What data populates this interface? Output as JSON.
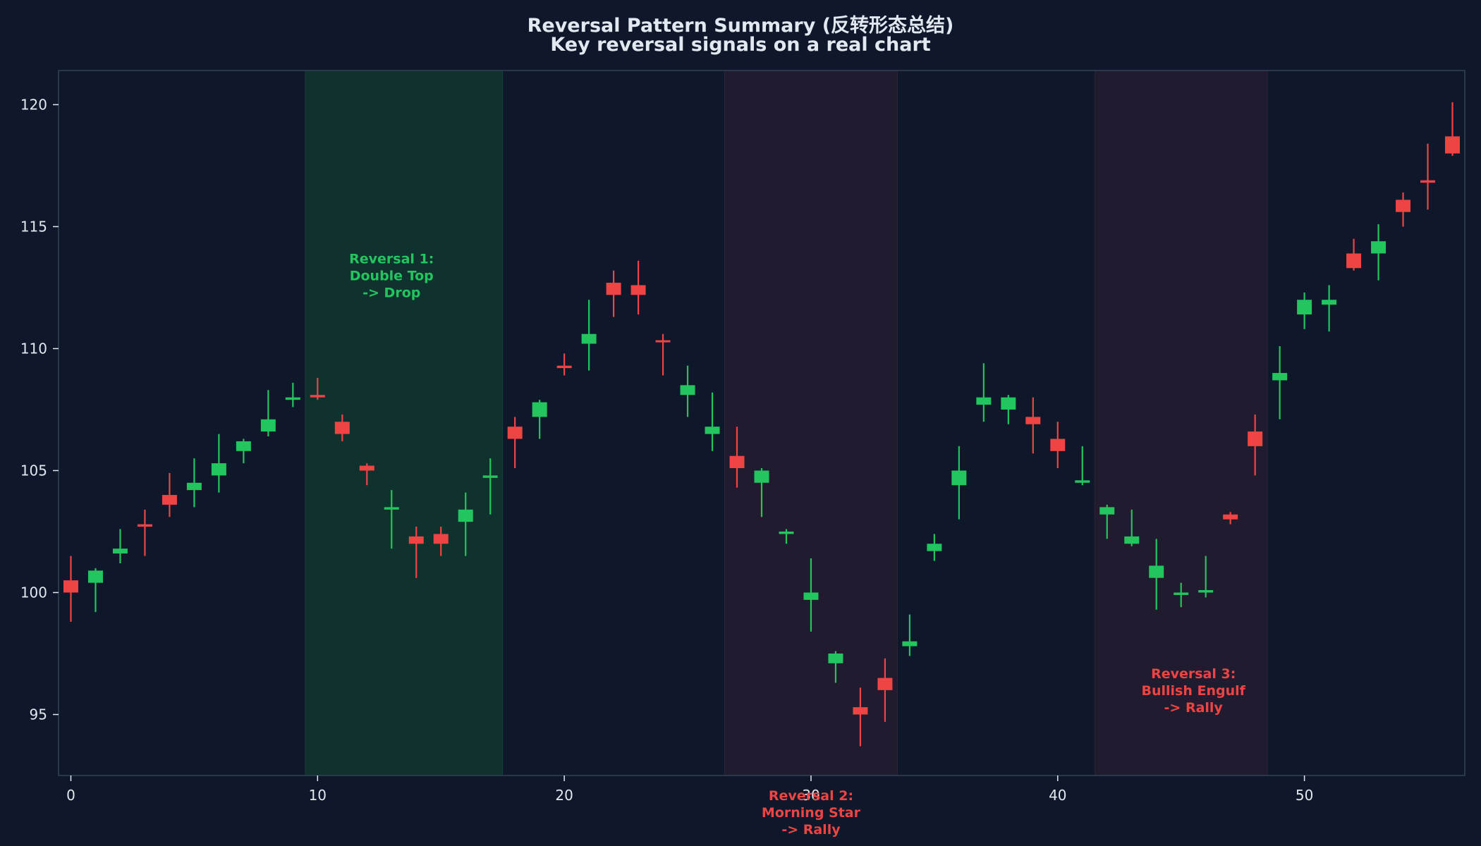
{
  "chart_data": {
    "type": "candlestick",
    "title": "Reversal Pattern Summary (反转形态总结)",
    "subtitle": "Key reversal signals on a real chart",
    "xlabel": "",
    "ylabel": "",
    "xlim": [
      -0.5,
      56.5
    ],
    "ylim": [
      92.5,
      121.4
    ],
    "xticks": [
      0,
      10,
      20,
      30,
      40,
      50
    ],
    "yticks": [
      95,
      100,
      105,
      110,
      115,
      120
    ],
    "colors": {
      "background": "#0f172a",
      "up": "#22c55e",
      "down": "#ef4444",
      "text": "#e2e8f0",
      "axis": "#334155",
      "zone_green": "#10322f",
      "zone_red": "#201b2e"
    },
    "zones": [
      {
        "x0": 9.5,
        "x1": 17.5,
        "type": "green"
      },
      {
        "x0": 26.5,
        "x1": 33.5,
        "type": "red"
      },
      {
        "x0": 41.5,
        "x1": 48.5,
        "type": "red"
      }
    ],
    "annotations": [
      {
        "x": 13.0,
        "y": 113.0,
        "color": "#22c55e",
        "lines": [
          "Reversal 1:",
          "Double Top",
          "-> Drop"
        ]
      },
      {
        "x": 30.0,
        "y": 91.0,
        "color": "#ef4444",
        "lines": [
          "Reversal 2:",
          "Morning Star",
          "-> Rally"
        ]
      },
      {
        "x": 45.5,
        "y": 96.0,
        "color": "#ef4444",
        "lines": [
          "Reversal 3:",
          "Bullish Engulf",
          "-> Rally"
        ]
      }
    ],
    "candles": [
      {
        "x": 0,
        "o": 100.5,
        "h": 101.5,
        "l": 98.8,
        "c": 100.0,
        "dir": "down"
      },
      {
        "x": 1,
        "o": 100.4,
        "h": 101.0,
        "l": 99.2,
        "c": 100.9,
        "dir": "up"
      },
      {
        "x": 2,
        "o": 101.6,
        "h": 102.6,
        "l": 101.2,
        "c": 101.8,
        "dir": "up"
      },
      {
        "x": 3,
        "o": 102.8,
        "h": 103.4,
        "l": 101.5,
        "c": 102.7,
        "dir": "down"
      },
      {
        "x": 4,
        "o": 104.0,
        "h": 104.9,
        "l": 103.1,
        "c": 103.6,
        "dir": "down"
      },
      {
        "x": 5,
        "o": 104.2,
        "h": 105.5,
        "l": 103.5,
        "c": 104.5,
        "dir": "up"
      },
      {
        "x": 6,
        "o": 104.8,
        "h": 106.5,
        "l": 104.1,
        "c": 105.3,
        "dir": "up"
      },
      {
        "x": 7,
        "o": 105.8,
        "h": 106.3,
        "l": 105.3,
        "c": 106.2,
        "dir": "up"
      },
      {
        "x": 8,
        "o": 106.6,
        "h": 108.3,
        "l": 106.4,
        "c": 107.1,
        "dir": "up"
      },
      {
        "x": 9,
        "o": 107.9,
        "h": 108.6,
        "l": 107.6,
        "c": 108.0,
        "dir": "up"
      },
      {
        "x": 10,
        "o": 108.1,
        "h": 108.8,
        "l": 107.9,
        "c": 108.0,
        "dir": "down"
      },
      {
        "x": 11,
        "o": 107.0,
        "h": 107.3,
        "l": 106.2,
        "c": 106.5,
        "dir": "down"
      },
      {
        "x": 12,
        "o": 105.2,
        "h": 105.3,
        "l": 104.4,
        "c": 105.0,
        "dir": "down"
      },
      {
        "x": 13,
        "o": 103.4,
        "h": 104.2,
        "l": 101.8,
        "c": 103.5,
        "dir": "up"
      },
      {
        "x": 14,
        "o": 102.3,
        "h": 102.7,
        "l": 100.6,
        "c": 102.0,
        "dir": "down"
      },
      {
        "x": 15,
        "o": 102.4,
        "h": 102.7,
        "l": 101.5,
        "c": 102.0,
        "dir": "down"
      },
      {
        "x": 16,
        "o": 102.9,
        "h": 104.1,
        "l": 101.5,
        "c": 103.4,
        "dir": "up"
      },
      {
        "x": 17,
        "o": 104.7,
        "h": 105.5,
        "l": 103.2,
        "c": 104.8,
        "dir": "up"
      },
      {
        "x": 18,
        "o": 106.8,
        "h": 107.2,
        "l": 105.1,
        "c": 106.3,
        "dir": "down"
      },
      {
        "x": 19,
        "o": 107.2,
        "h": 107.9,
        "l": 106.3,
        "c": 107.8,
        "dir": "up"
      },
      {
        "x": 20,
        "o": 109.3,
        "h": 109.8,
        "l": 108.9,
        "c": 109.2,
        "dir": "down"
      },
      {
        "x": 21,
        "o": 110.2,
        "h": 112.0,
        "l": 109.1,
        "c": 110.6,
        "dir": "up"
      },
      {
        "x": 22,
        "o": 112.7,
        "h": 113.2,
        "l": 111.3,
        "c": 112.2,
        "dir": "down"
      },
      {
        "x": 23,
        "o": 112.6,
        "h": 113.6,
        "l": 111.4,
        "c": 112.2,
        "dir": "down"
      },
      {
        "x": 24,
        "o": 110.3,
        "h": 110.6,
        "l": 108.9,
        "c": 110.3,
        "dir": "down"
      },
      {
        "x": 25,
        "o": 108.1,
        "h": 109.3,
        "l": 107.2,
        "c": 108.5,
        "dir": "up"
      },
      {
        "x": 26,
        "o": 106.5,
        "h": 108.2,
        "l": 105.8,
        "c": 106.8,
        "dir": "up"
      },
      {
        "x": 27,
        "o": 105.6,
        "h": 106.8,
        "l": 104.3,
        "c": 105.1,
        "dir": "down"
      },
      {
        "x": 28,
        "o": 104.5,
        "h": 105.1,
        "l": 103.1,
        "c": 105.0,
        "dir": "up"
      },
      {
        "x": 29,
        "o": 102.4,
        "h": 102.6,
        "l": 102.0,
        "c": 102.5,
        "dir": "up"
      },
      {
        "x": 30,
        "o": 99.7,
        "h": 101.4,
        "l": 98.4,
        "c": 100.0,
        "dir": "up"
      },
      {
        "x": 31,
        "o": 97.1,
        "h": 97.6,
        "l": 96.3,
        "c": 97.5,
        "dir": "up"
      },
      {
        "x": 32,
        "o": 95.3,
        "h": 96.1,
        "l": 93.7,
        "c": 95.0,
        "dir": "down"
      },
      {
        "x": 33,
        "o": 96.5,
        "h": 97.3,
        "l": 94.7,
        "c": 96.0,
        "dir": "down"
      },
      {
        "x": 34,
        "o": 97.8,
        "h": 99.1,
        "l": 97.4,
        "c": 98.0,
        "dir": "up"
      },
      {
        "x": 35,
        "o": 101.7,
        "h": 102.4,
        "l": 101.3,
        "c": 102.0,
        "dir": "up"
      },
      {
        "x": 36,
        "o": 104.4,
        "h": 106.0,
        "l": 103.0,
        "c": 105.0,
        "dir": "up"
      },
      {
        "x": 37,
        "o": 107.7,
        "h": 109.4,
        "l": 107.0,
        "c": 108.0,
        "dir": "up"
      },
      {
        "x": 38,
        "o": 107.5,
        "h": 108.1,
        "l": 106.9,
        "c": 108.0,
        "dir": "up"
      },
      {
        "x": 39,
        "o": 107.2,
        "h": 108.0,
        "l": 105.7,
        "c": 106.9,
        "dir": "down"
      },
      {
        "x": 40,
        "o": 106.3,
        "h": 107.0,
        "l": 105.1,
        "c": 105.8,
        "dir": "down"
      },
      {
        "x": 41,
        "o": 104.5,
        "h": 106.0,
        "l": 104.4,
        "c": 104.6,
        "dir": "up"
      },
      {
        "x": 42,
        "o": 103.2,
        "h": 103.6,
        "l": 102.2,
        "c": 103.5,
        "dir": "up"
      },
      {
        "x": 43,
        "o": 102.0,
        "h": 103.4,
        "l": 101.9,
        "c": 102.3,
        "dir": "up"
      },
      {
        "x": 44,
        "o": 100.6,
        "h": 102.2,
        "l": 99.3,
        "c": 101.1,
        "dir": "up"
      },
      {
        "x": 45,
        "o": 99.9,
        "h": 100.4,
        "l": 99.4,
        "c": 100.0,
        "dir": "up"
      },
      {
        "x": 46,
        "o": 100.0,
        "h": 101.5,
        "l": 99.8,
        "c": 100.1,
        "dir": "up"
      },
      {
        "x": 47,
        "o": 103.2,
        "h": 103.3,
        "l": 102.8,
        "c": 103.0,
        "dir": "down"
      },
      {
        "x": 48,
        "o": 106.6,
        "h": 107.3,
        "l": 104.8,
        "c": 106.0,
        "dir": "down"
      },
      {
        "x": 49,
        "o": 108.7,
        "h": 110.1,
        "l": 107.1,
        "c": 109.0,
        "dir": "up"
      },
      {
        "x": 50,
        "o": 111.4,
        "h": 112.3,
        "l": 110.8,
        "c": 112.0,
        "dir": "up"
      },
      {
        "x": 51,
        "o": 111.8,
        "h": 112.6,
        "l": 110.7,
        "c": 112.0,
        "dir": "up"
      },
      {
        "x": 52,
        "o": 113.9,
        "h": 114.5,
        "l": 113.2,
        "c": 113.3,
        "dir": "down"
      },
      {
        "x": 53,
        "o": 113.9,
        "h": 115.1,
        "l": 112.8,
        "c": 114.4,
        "dir": "up"
      },
      {
        "x": 54,
        "o": 116.1,
        "h": 116.4,
        "l": 115.0,
        "c": 115.6,
        "dir": "down"
      },
      {
        "x": 55,
        "o": 116.9,
        "h": 118.4,
        "l": 115.7,
        "c": 116.8,
        "dir": "down"
      },
      {
        "x": 56,
        "o": 118.7,
        "h": 120.1,
        "l": 117.9,
        "c": 118.0,
        "dir": "down"
      }
    ]
  }
}
